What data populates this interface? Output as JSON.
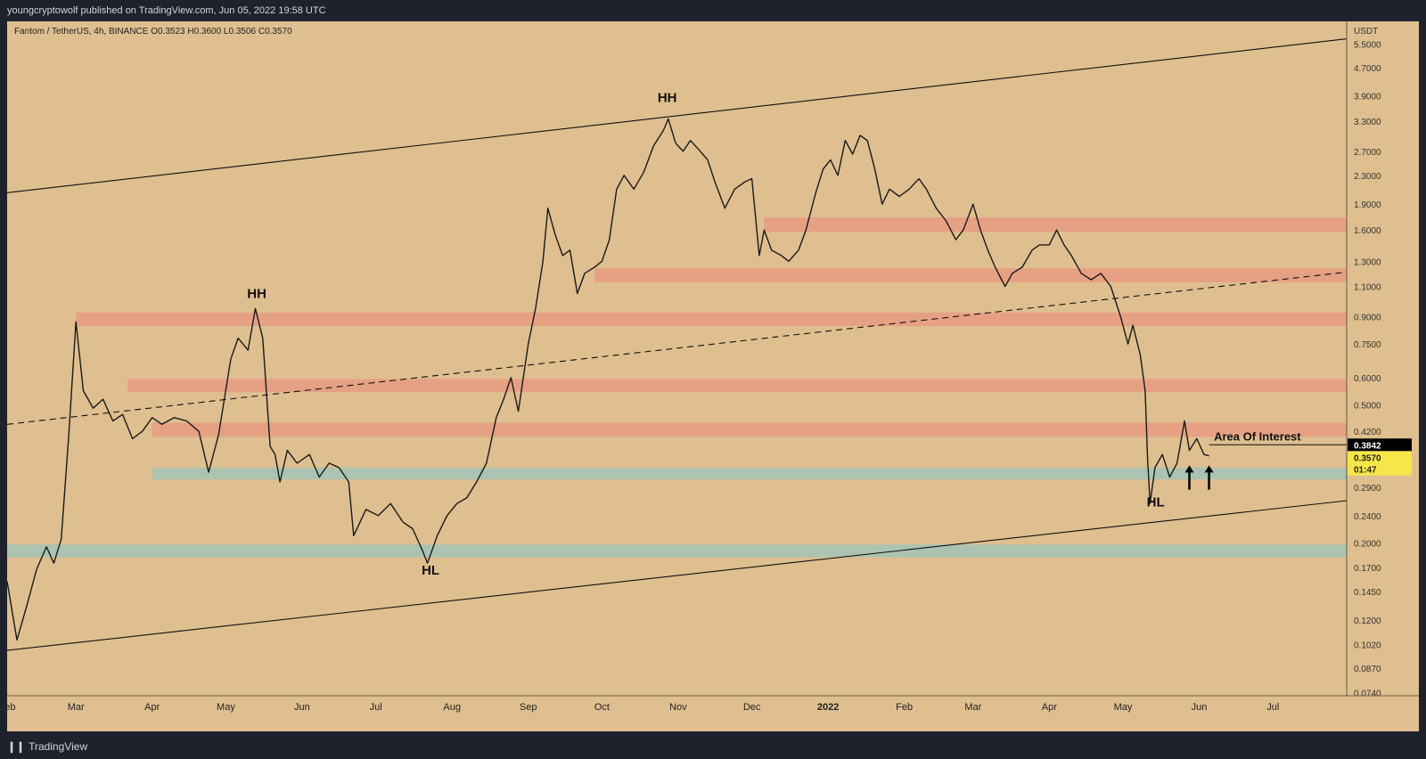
{
  "header": {
    "published": "youngcryptowolf published on TradingView.com, Jun 05, 2022 19:58 UTC"
  },
  "footer": {
    "brand": "TradingView",
    "logo_icon": "tradingview-logo-icon"
  },
  "colors": {
    "background": "#dfbf8f",
    "candles": "#1a1a1a",
    "resistance_zone": "#e69f84",
    "support_zone": "#a9c3b3",
    "last_price": "#f5e74a"
  },
  "chart_data": {
    "type": "line",
    "symbol_line": {
      "label": "Fantom / TetherUS, 4h, BINANCE",
      "open": "O0.3523",
      "high": "H0.3600",
      "low": "L0.3506",
      "close": "C0.3570"
    },
    "y_scale": "log",
    "y_unit": "USDT",
    "ylim": [
      0.0725,
      6.4
    ],
    "xlim": [
      "2021-02-01",
      "2022-07-31"
    ],
    "x_ticks": [
      {
        "date": "2021-02-01",
        "label": "Feb"
      },
      {
        "date": "2021-03-01",
        "label": "Mar"
      },
      {
        "date": "2021-04-01",
        "label": "Apr"
      },
      {
        "date": "2021-05-01",
        "label": "May"
      },
      {
        "date": "2021-06-01",
        "label": "Jun"
      },
      {
        "date": "2021-07-01",
        "label": "Jul"
      },
      {
        "date": "2021-08-01",
        "label": "Aug"
      },
      {
        "date": "2021-09-01",
        "label": "Sep"
      },
      {
        "date": "2021-10-01",
        "label": "Oct"
      },
      {
        "date": "2021-11-01",
        "label": "Nov"
      },
      {
        "date": "2021-12-01",
        "label": "Dec"
      },
      {
        "date": "2022-01-01",
        "label": "2022"
      },
      {
        "date": "2022-02-01",
        "label": "Feb"
      },
      {
        "date": "2022-03-01",
        "label": "Mar"
      },
      {
        "date": "2022-04-01",
        "label": "Apr"
      },
      {
        "date": "2022-05-01",
        "label": "May"
      },
      {
        "date": "2022-06-01",
        "label": "Jun"
      },
      {
        "date": "2022-07-01",
        "label": "Jul"
      }
    ],
    "y_ticks": [
      "5.5000",
      "4.7000",
      "3.9000",
      "3.3000",
      "2.7000",
      "2.3000",
      "1.9000",
      "1.6000",
      "1.3000",
      "1.1000",
      "0.9000",
      "0.7500",
      "0.6000",
      "0.5000",
      "0.4200",
      "0.2900",
      "0.2400",
      "0.2000",
      "0.1700",
      "0.1450",
      "0.1200",
      "0.1020",
      "0.0870",
      "0.0740"
    ],
    "series": [
      {
        "type": "line",
        "values": [
          [
            "2021-02-01",
            0.155
          ],
          [
            "2021-02-05",
            0.105
          ],
          [
            "2021-02-09",
            0.132
          ],
          [
            "2021-02-13",
            0.168
          ],
          [
            "2021-02-17",
            0.195
          ],
          [
            "2021-02-20",
            0.175
          ],
          [
            "2021-02-23",
            0.205
          ],
          [
            "2021-02-26",
            0.4
          ],
          [
            "2021-03-01",
            0.87
          ],
          [
            "2021-03-04",
            0.55
          ],
          [
            "2021-03-08",
            0.49
          ],
          [
            "2021-03-12",
            0.52
          ],
          [
            "2021-03-16",
            0.45
          ],
          [
            "2021-03-20",
            0.47
          ],
          [
            "2021-03-24",
            0.4
          ],
          [
            "2021-03-28",
            0.42
          ],
          [
            "2021-04-01",
            0.46
          ],
          [
            "2021-04-05",
            0.44
          ],
          [
            "2021-04-10",
            0.46
          ],
          [
            "2021-04-15",
            0.45
          ],
          [
            "2021-04-20",
            0.42
          ],
          [
            "2021-04-24",
            0.32
          ],
          [
            "2021-04-28",
            0.41
          ],
          [
            "2021-05-03",
            0.68
          ],
          [
            "2021-05-06",
            0.78
          ],
          [
            "2021-05-10",
            0.72
          ],
          [
            "2021-05-13",
            0.95
          ],
          [
            "2021-05-16",
            0.78
          ],
          [
            "2021-05-19",
            0.38
          ],
          [
            "2021-05-21",
            0.36
          ],
          [
            "2021-05-23",
            0.3
          ],
          [
            "2021-05-26",
            0.37
          ],
          [
            "2021-05-30",
            0.34
          ],
          [
            "2021-06-04",
            0.36
          ],
          [
            "2021-06-08",
            0.31
          ],
          [
            "2021-06-12",
            0.34
          ],
          [
            "2021-06-16",
            0.33
          ],
          [
            "2021-06-20",
            0.3
          ],
          [
            "2021-06-22",
            0.21
          ],
          [
            "2021-06-27",
            0.25
          ],
          [
            "2021-07-02",
            0.24
          ],
          [
            "2021-07-07",
            0.26
          ],
          [
            "2021-07-12",
            0.23
          ],
          [
            "2021-07-16",
            0.22
          ],
          [
            "2021-07-20",
            0.19
          ],
          [
            "2021-07-22",
            0.175
          ],
          [
            "2021-07-26",
            0.21
          ],
          [
            "2021-07-30",
            0.24
          ],
          [
            "2021-08-03",
            0.26
          ],
          [
            "2021-08-07",
            0.27
          ],
          [
            "2021-08-11",
            0.3
          ],
          [
            "2021-08-15",
            0.34
          ],
          [
            "2021-08-19",
            0.46
          ],
          [
            "2021-08-22",
            0.52
          ],
          [
            "2021-08-25",
            0.6
          ],
          [
            "2021-08-28",
            0.48
          ],
          [
            "2021-09-01",
            0.75
          ],
          [
            "2021-09-04",
            0.95
          ],
          [
            "2021-09-07",
            1.3
          ],
          [
            "2021-09-09",
            1.85
          ],
          [
            "2021-09-12",
            1.55
          ],
          [
            "2021-09-15",
            1.35
          ],
          [
            "2021-09-18",
            1.4
          ],
          [
            "2021-09-21",
            1.05
          ],
          [
            "2021-09-24",
            1.2
          ],
          [
            "2021-09-28",
            1.25
          ],
          [
            "2021-10-01",
            1.3
          ],
          [
            "2021-10-04",
            1.5
          ],
          [
            "2021-10-07",
            2.1
          ],
          [
            "2021-10-10",
            2.3
          ],
          [
            "2021-10-14",
            2.1
          ],
          [
            "2021-10-18",
            2.35
          ],
          [
            "2021-10-22",
            2.8
          ],
          [
            "2021-10-26",
            3.1
          ],
          [
            "2021-10-28",
            3.35
          ],
          [
            "2021-10-31",
            2.85
          ],
          [
            "2021-11-03",
            2.7
          ],
          [
            "2021-11-06",
            2.9
          ],
          [
            "2021-11-10",
            2.7
          ],
          [
            "2021-11-13",
            2.55
          ],
          [
            "2021-11-16",
            2.2
          ],
          [
            "2021-11-20",
            1.85
          ],
          [
            "2021-11-24",
            2.1
          ],
          [
            "2021-11-28",
            2.2
          ],
          [
            "2021-12-01",
            2.25
          ],
          [
            "2021-12-04",
            1.35
          ],
          [
            "2021-12-06",
            1.6
          ],
          [
            "2021-12-09",
            1.4
          ],
          [
            "2021-12-13",
            1.35
          ],
          [
            "2021-12-16",
            1.3
          ],
          [
            "2021-12-20",
            1.4
          ],
          [
            "2021-12-23",
            1.6
          ],
          [
            "2021-12-27",
            2.05
          ],
          [
            "2021-12-30",
            2.4
          ],
          [
            "2022-01-02",
            2.55
          ],
          [
            "2022-01-05",
            2.3
          ],
          [
            "2022-01-08",
            2.9
          ],
          [
            "2022-01-11",
            2.65
          ],
          [
            "2022-01-14",
            3.0
          ],
          [
            "2022-01-17",
            2.9
          ],
          [
            "2022-01-20",
            2.4
          ],
          [
            "2022-01-23",
            1.9
          ],
          [
            "2022-01-26",
            2.1
          ],
          [
            "2022-01-30",
            2.0
          ],
          [
            "2022-02-03",
            2.1
          ],
          [
            "2022-02-07",
            2.25
          ],
          [
            "2022-02-10",
            2.1
          ],
          [
            "2022-02-14",
            1.85
          ],
          [
            "2022-02-18",
            1.7
          ],
          [
            "2022-02-22",
            1.5
          ],
          [
            "2022-02-25",
            1.6
          ],
          [
            "2022-03-01",
            1.9
          ],
          [
            "2022-03-04",
            1.6
          ],
          [
            "2022-03-07",
            1.4
          ],
          [
            "2022-03-10",
            1.25
          ],
          [
            "2022-03-14",
            1.1
          ],
          [
            "2022-03-17",
            1.2
          ],
          [
            "2022-03-21",
            1.25
          ],
          [
            "2022-03-25",
            1.4
          ],
          [
            "2022-03-28",
            1.45
          ],
          [
            "2022-04-01",
            1.45
          ],
          [
            "2022-04-04",
            1.6
          ],
          [
            "2022-04-07",
            1.45
          ],
          [
            "2022-04-10",
            1.35
          ],
          [
            "2022-04-14",
            1.2
          ],
          [
            "2022-04-18",
            1.15
          ],
          [
            "2022-04-22",
            1.2
          ],
          [
            "2022-04-26",
            1.1
          ],
          [
            "2022-04-30",
            0.9
          ],
          [
            "2022-05-03",
            0.75
          ],
          [
            "2022-05-05",
            0.85
          ],
          [
            "2022-05-08",
            0.7
          ],
          [
            "2022-05-10",
            0.55
          ],
          [
            "2022-05-11",
            0.35
          ],
          [
            "2022-05-12",
            0.26
          ],
          [
            "2022-05-14",
            0.33
          ],
          [
            "2022-05-17",
            0.36
          ],
          [
            "2022-05-20",
            0.31
          ],
          [
            "2022-05-23",
            0.34
          ],
          [
            "2022-05-26",
            0.45
          ],
          [
            "2022-05-28",
            0.37
          ],
          [
            "2022-05-31",
            0.4
          ],
          [
            "2022-06-03",
            0.36
          ],
          [
            "2022-06-05",
            0.357
          ]
        ]
      }
    ],
    "zones": [
      {
        "kind": "resistance",
        "low": 0.845,
        "high": 0.925,
        "from": "2021-03-01",
        "to": "2022-07-31"
      },
      {
        "kind": "resistance",
        "low": 0.545,
        "high": 0.595,
        "from": "2021-03-22",
        "to": "2022-07-31"
      },
      {
        "kind": "resistance",
        "low": 0.405,
        "high": 0.445,
        "from": "2021-04-01",
        "to": "2022-07-31"
      },
      {
        "kind": "resistance",
        "low": 1.58,
        "high": 1.74,
        "from": "2021-12-06",
        "to": "2022-07-31"
      },
      {
        "kind": "resistance",
        "low": 1.13,
        "high": 1.24,
        "from": "2021-09-28",
        "to": "2022-07-31"
      },
      {
        "kind": "support",
        "low": 0.305,
        "high": 0.33,
        "from": "2021-04-01",
        "to": "2022-07-31"
      },
      {
        "kind": "support",
        "low": 0.182,
        "high": 0.198,
        "from": "2021-02-01",
        "to": "2022-07-31"
      }
    ],
    "trendlines": [
      {
        "style": "solid",
        "from": [
          "2021-02-01",
          2.05
        ],
        "to": [
          "2022-07-31",
          5.7
        ]
      },
      {
        "style": "solid",
        "from": [
          "2021-02-01",
          0.098
        ],
        "to": [
          "2022-07-31",
          0.265
        ]
      },
      {
        "style": "dashed",
        "from": [
          "2021-02-01",
          0.44
        ],
        "to": [
          "2022-07-31",
          1.21
        ]
      },
      {
        "style": "solid",
        "from": [
          "2022-06-05",
          0.3842
        ],
        "to": [
          "2022-07-31",
          0.3842
        ]
      }
    ],
    "annotations": [
      {
        "text": "HH",
        "x": "2021-05-14",
        "y": 1.02
      },
      {
        "text": "HH",
        "x": "2021-10-28",
        "y": 3.75
      },
      {
        "text": "HL",
        "x": "2021-07-24",
        "y": 0.162
      },
      {
        "text": "HL",
        "x": "2022-05-15",
        "y": 0.255
      },
      {
        "text": "Area Of Interest",
        "x": "2022-06-07",
        "y": 0.395
      }
    ],
    "arrows": [
      {
        "x": "2022-05-28",
        "y_tip": 0.335,
        "y_base": 0.285
      },
      {
        "x": "2022-06-05",
        "y_tip": 0.335,
        "y_base": 0.285
      }
    ],
    "price_labels": [
      {
        "value": "0.3842",
        "y": 0.3842,
        "style": "black"
      },
      {
        "value": "0.3570",
        "y": 0.357,
        "style": "yellow"
      },
      {
        "value": "01:47",
        "y": 0.357,
        "style": "yellow-sub"
      }
    ]
  }
}
